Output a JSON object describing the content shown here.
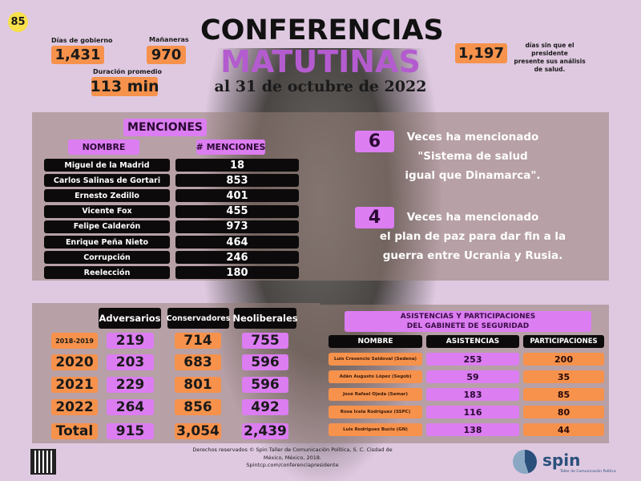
{
  "badge": "85",
  "stats": {
    "dias_label": "Días de gobierno",
    "dias": "1,431",
    "mananeras_label": "Mañaneras",
    "mananeras": "970",
    "duracion_label": "Duración promedio",
    "duracion": "113 min",
    "salud": "1,197",
    "salud_text": [
      "días sin que el presidente",
      "presente sus análisis",
      "de salud."
    ]
  },
  "title": {
    "line1": "CONFERENCIAS",
    "line2": "MATUTINAS",
    "date": "al 31 de octubre de 2022"
  },
  "menciones": {
    "title": "MENCIONES",
    "col_name": "NOMBRE",
    "col_count": "# MENCIONES",
    "rows": [
      [
        "Miguel de la Madrid",
        "18"
      ],
      [
        "Carlos Salinas de Gortari",
        "853"
      ],
      [
        "Ernesto Zedillo",
        "401"
      ],
      [
        "Vicente Fox",
        "455"
      ],
      [
        "Felipe Calderón",
        "973"
      ],
      [
        "Enrique Peña Nieto",
        "464"
      ],
      [
        "Corrupción",
        "246"
      ],
      [
        "Reelección",
        "180"
      ]
    ]
  },
  "facts": [
    {
      "number": "6",
      "lines": [
        "Veces ha mencionado",
        "\"Sistema de salud",
        "igual que Dinamarca\"."
      ]
    },
    {
      "number": "4",
      "lines": [
        "Veces ha mencionado",
        "el plan de paz para dar fin a la",
        "guerra entre Ucrania y Rusia."
      ]
    }
  ],
  "adversarios": {
    "headers": [
      "Adversarios",
      "Conservadores",
      "Neoliberales"
    ],
    "rows": [
      [
        "2018-2019",
        "219",
        "714",
        "755"
      ],
      [
        "2020",
        "203",
        "683",
        "596"
      ],
      [
        "2021",
        "229",
        "801",
        "596"
      ],
      [
        "2022",
        "264",
        "856",
        "492"
      ],
      [
        "Total",
        "915",
        "3,054",
        "2,439"
      ]
    ]
  },
  "gabinete": {
    "title1": "ASISTENCIAS Y PARTICIPACIONES",
    "title2": "DEL GABINETE DE SEGURIDAD",
    "headers": [
      "NOMBRE",
      "ASISTENCIAS",
      "PARTICIPACIONES"
    ],
    "rows": [
      [
        "Luis Cresencio Saldoval (Sedena)",
        "253",
        "200"
      ],
      [
        "Adán Augusto López (Segob)",
        "59",
        "35"
      ],
      [
        "José Rafael Ojeda (Semar)",
        "183",
        "85"
      ],
      [
        "Rosa Icela Rodriguez (SSPC)",
        "116",
        "80"
      ],
      [
        "Luis Rodriguez Bucio (GN)",
        "138",
        "44"
      ]
    ]
  },
  "footer": {
    "line1": "Derechos reservados © Spin Taller de Comunicación Política, S. C. Cisdad de",
    "line2": "México, México, 2018.",
    "line3": "Spintcp.com/conferenciapresidente"
  },
  "logo": {
    "name": "spin",
    "tagline": "Taller de Comunicación Política"
  },
  "colors": {
    "orange": "#f6924c",
    "purple": "#dc7df2",
    "title_purple": "#b45ccf",
    "background": "#dfc9e1"
  }
}
